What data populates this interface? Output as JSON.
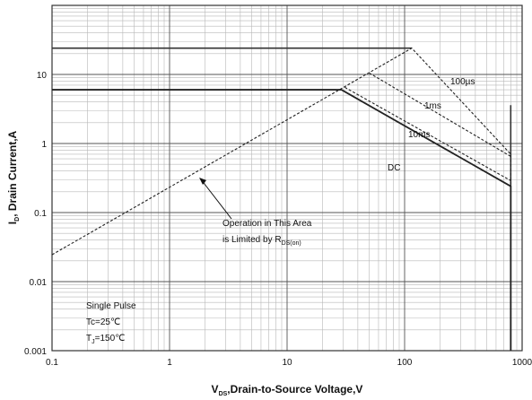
{
  "chart_data": {
    "type": "line",
    "title": "",
    "xscale": "log",
    "yscale": "log",
    "xlim": [
      0.1,
      1000
    ],
    "ylim": [
      0.001,
      100
    ],
    "x_ticks": [
      "0.1",
      "1",
      "10",
      "100",
      "1000"
    ],
    "y_ticks": [
      "0.001",
      "0.01",
      "0.1",
      "1",
      "10"
    ],
    "xlabel": {
      "main": "V",
      "sub": "DS",
      "rest": ",Drain-to-Source Voltage,V"
    },
    "ylabel": {
      "main": "I",
      "sub": "D",
      "rest": ", Drain Current,A"
    },
    "grid": true,
    "series": [
      {
        "name": "100µs",
        "style": "dashed",
        "points": [
          [
            0.1,
            0.0245
          ],
          [
            115,
            24
          ],
          [
            800,
            0.7
          ],
          [
            800,
            0.001
          ]
        ]
      },
      {
        "name": "1ms",
        "style": "dashed",
        "points": [
          [
            50,
            10.5
          ],
          [
            800,
            0.65
          ]
        ]
      },
      {
        "name": "10ms",
        "style": "dashed",
        "points": [
          [
            31,
            6.5
          ],
          [
            800,
            0.29
          ]
        ]
      },
      {
        "name": "DC",
        "style": "solid",
        "points": [
          [
            0.1,
            6
          ],
          [
            29,
            6
          ],
          [
            800,
            0.24
          ],
          [
            800,
            0.001
          ]
        ]
      }
    ],
    "guide_lines": [
      {
        "style": "solid",
        "points": [
          [
            0.1,
            24
          ],
          [
            115,
            24
          ]
        ]
      },
      {
        "style": "solid",
        "points": [
          [
            0.1,
            6
          ],
          [
            29,
            6
          ]
        ]
      },
      {
        "style": "solid",
        "points": [
          [
            800,
            3.6
          ],
          [
            800,
            0.001
          ]
        ]
      }
    ],
    "annotations": {
      "line_labels": [
        "100µs",
        "1ms",
        "10ms",
        "DC"
      ],
      "rds_note": {
        "line1": "Operation in This Area",
        "line2_main": "is Limited by R",
        "line2_sub": "DS(on)"
      },
      "pulse_note": {
        "line1": "Single Pulse",
        "line2": "Tc=25℃",
        "line3_main": "T",
        "line3_sub": "J",
        "line3_rest": "=150℃"
      }
    }
  }
}
